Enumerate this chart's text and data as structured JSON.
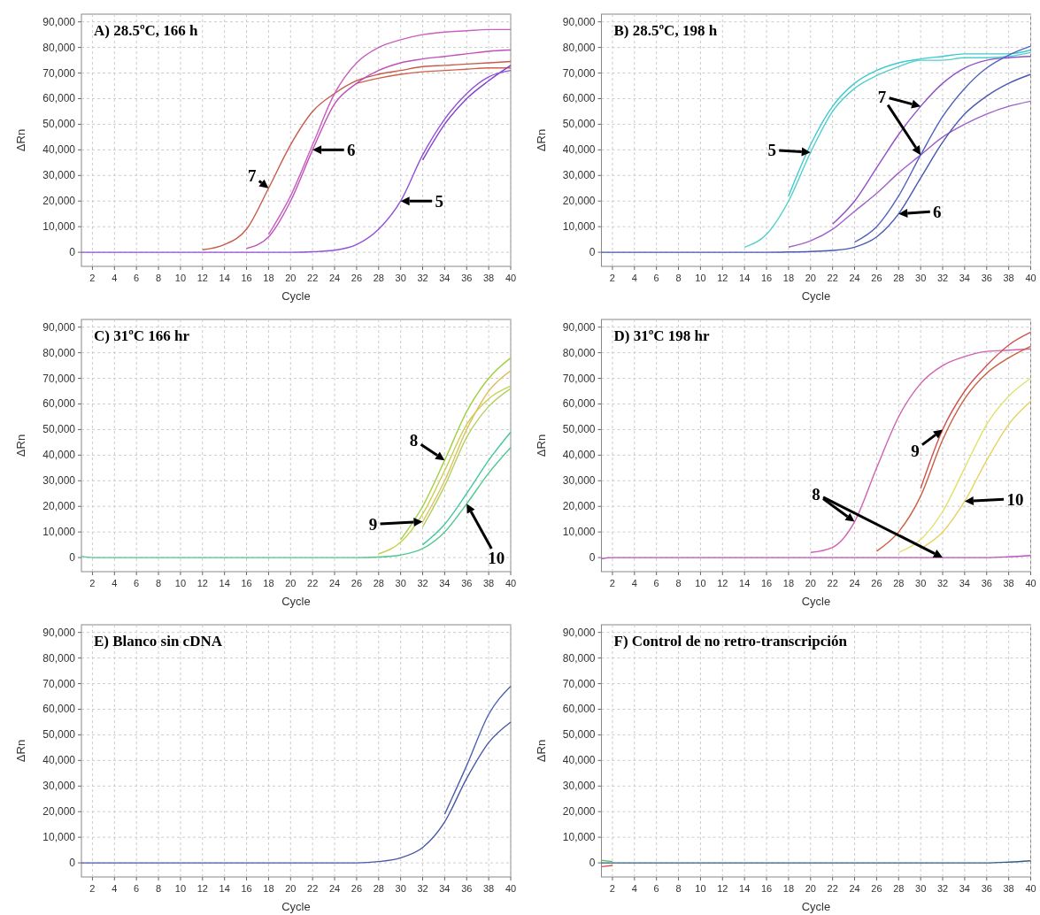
{
  "chart_data": [
    {
      "type": "line",
      "title": "A) 28.5ºC, 166 h",
      "xlabel": "Cycle",
      "ylabel": "ΔRn",
      "grid": true,
      "xlim": [
        1,
        40
      ],
      "ylim": [
        -5500,
        93000
      ],
      "xticks": [
        2,
        4,
        6,
        8,
        10,
        12,
        14,
        16,
        18,
        20,
        22,
        24,
        26,
        28,
        30,
        32,
        34,
        36,
        38,
        40
      ],
      "yticks": [
        {
          "value": 0,
          "label": "0"
        },
        {
          "value": 10000,
          "label": "10,000"
        },
        {
          "value": 20000,
          "label": "20,000"
        },
        {
          "value": 30000,
          "label": "30,000"
        },
        {
          "value": 40000,
          "label": "40,000"
        },
        {
          "value": 50000,
          "label": "50,000"
        },
        {
          "value": 60000,
          "label": "60,000"
        },
        {
          "value": 70000,
          "label": "70,000"
        },
        {
          "value": 80000,
          "label": "80,000"
        },
        {
          "value": 90000,
          "label": "90,000"
        }
      ],
      "x": [
        1,
        2,
        4,
        6,
        8,
        10,
        12,
        14,
        16,
        18,
        20,
        22,
        24,
        26,
        28,
        30,
        32,
        34,
        36,
        38,
        40
      ],
      "series": [
        {
          "color": "#d0604a",
          "values": [
            null,
            null,
            null,
            null,
            null,
            null,
            null,
            null,
            null,
            null,
            null,
            null,
            null,
            66000,
            68000,
            69500,
            70500,
            71000,
            71500,
            72000,
            72000
          ]
        },
        {
          "color": "#c85a48",
          "values": [
            null,
            null,
            null,
            null,
            null,
            null,
            1000,
            3000,
            9000,
            25000,
            42000,
            55000,
            62000,
            67000,
            69500,
            71000,
            72500,
            73000,
            73500,
            74000,
            74500
          ]
        },
        {
          "color": "#c860c0",
          "values": [
            null,
            null,
            null,
            null,
            null,
            null,
            null,
            null,
            null,
            7000,
            22000,
            42000,
            62000,
            74000,
            80000,
            83000,
            85000,
            86000,
            86500,
            87000,
            87000
          ]
        },
        {
          "color": "#c050b8",
          "values": [
            null,
            null,
            null,
            null,
            null,
            null,
            null,
            null,
            1500,
            6000,
            20000,
            40000,
            58000,
            66000,
            71000,
            74000,
            75500,
            76500,
            77500,
            78500,
            79000
          ]
        },
        {
          "color": "#8040d0",
          "values": [
            null,
            null,
            null,
            null,
            null,
            null,
            null,
            null,
            null,
            null,
            null,
            null,
            null,
            null,
            null,
            null,
            36000,
            50000,
            60000,
            67000,
            73000
          ]
        },
        {
          "color": "#9050d8",
          "values": [
            0,
            0,
            0,
            0,
            0,
            0,
            0,
            0,
            0,
            0,
            0,
            200,
            800,
            3000,
            9000,
            20000,
            38000,
            52000,
            62000,
            68500,
            71000
          ]
        }
      ],
      "annotations": [
        {
          "text": "7",
          "x": 18,
          "y": 25000
        },
        {
          "text": "6",
          "x": 22,
          "y": 40000
        },
        {
          "text": "5",
          "x": 30,
          "y": 20000
        }
      ]
    },
    {
      "type": "line",
      "title": "B) 28.5ºC, 198 h",
      "xlabel": "Cycle",
      "ylabel": "ΔRn",
      "grid": true,
      "xlim": [
        1,
        40
      ],
      "ylim": [
        -5500,
        93000
      ],
      "xticks": [
        2,
        4,
        6,
        8,
        10,
        12,
        14,
        16,
        18,
        20,
        22,
        24,
        26,
        28,
        30,
        32,
        34,
        36,
        38,
        40
      ],
      "yticks": [
        {
          "value": 0,
          "label": "0"
        },
        {
          "value": 10000,
          "label": "10,000"
        },
        {
          "value": 20000,
          "label": "20,000"
        },
        {
          "value": 30000,
          "label": "30,000"
        },
        {
          "value": 40000,
          "label": "40,000"
        },
        {
          "value": 50000,
          "label": "50,000"
        },
        {
          "value": 60000,
          "label": "60,000"
        },
        {
          "value": 70000,
          "label": "70,000"
        },
        {
          "value": 80000,
          "label": "80,000"
        },
        {
          "value": 90000,
          "label": "90,000"
        }
      ],
      "x": [
        1,
        2,
        4,
        6,
        8,
        10,
        12,
        14,
        16,
        18,
        20,
        22,
        24,
        26,
        28,
        30,
        32,
        34,
        36,
        38,
        40
      ],
      "series": [
        {
          "color": "#40c8d0",
          "values": [
            null,
            null,
            null,
            null,
            null,
            null,
            null,
            null,
            null,
            22000,
            42000,
            57000,
            66000,
            71000,
            74000,
            75500,
            76500,
            77500,
            77500,
            77500,
            79000
          ]
        },
        {
          "color": "#50d0c8",
          "values": [
            null,
            null,
            null,
            null,
            null,
            null,
            null,
            2000,
            7000,
            20000,
            39000,
            55000,
            64000,
            69000,
            72500,
            75000,
            75000,
            76000,
            76000,
            76500,
            78000
          ]
        },
        {
          "color": "#9050c8",
          "values": [
            null,
            null,
            null,
            null,
            null,
            null,
            null,
            null,
            null,
            null,
            null,
            11000,
            20000,
            33000,
            46000,
            57000,
            66000,
            72000,
            75000,
            76000,
            76500
          ]
        },
        {
          "color": "#a060c8",
          "values": [
            null,
            null,
            null,
            null,
            null,
            null,
            null,
            null,
            null,
            2000,
            4500,
            9000,
            16000,
            23000,
            31000,
            38000,
            45000,
            50000,
            54000,
            57000,
            59000
          ]
        },
        {
          "color": "#5060c0",
          "values": [
            null,
            null,
            null,
            null,
            null,
            null,
            null,
            null,
            null,
            null,
            null,
            null,
            4000,
            10000,
            22000,
            38000,
            53000,
            64000,
            72000,
            77000,
            80500
          ]
        },
        {
          "color": "#4858b0",
          "values": [
            0,
            0,
            0,
            0,
            0,
            0,
            0,
            0,
            0,
            100,
            300,
            700,
            2000,
            6000,
            15000,
            29000,
            43000,
            54000,
            61000,
            66000,
            69500
          ]
        }
      ],
      "annotations": [
        {
          "text": "5",
          "x": 20,
          "y": 39000
        },
        {
          "text": "7",
          "x": 30,
          "y": 57000
        },
        {
          "text": "6",
          "x": 28,
          "y": 15000
        }
      ]
    },
    {
      "type": "line",
      "title": "C) 31ºC 166 hr",
      "xlabel": "Cycle",
      "ylabel": "ΔRn",
      "grid": true,
      "xlim": [
        1,
        40
      ],
      "ylim": [
        -5500,
        93000
      ],
      "xticks": [
        2,
        4,
        6,
        8,
        10,
        12,
        14,
        16,
        18,
        20,
        22,
        24,
        26,
        28,
        30,
        32,
        34,
        36,
        38,
        40
      ],
      "yticks": [
        {
          "value": 0,
          "label": "0"
        },
        {
          "value": 10000,
          "label": "10,000"
        },
        {
          "value": 20000,
          "label": "20,000"
        },
        {
          "value": 30000,
          "label": "30,000"
        },
        {
          "value": 40000,
          "label": "40,000"
        },
        {
          "value": 50000,
          "label": "50,000"
        },
        {
          "value": 60000,
          "label": "60,000"
        },
        {
          "value": 70000,
          "label": "70,000"
        },
        {
          "value": 80000,
          "label": "80,000"
        },
        {
          "value": 90000,
          "label": "90,000"
        }
      ],
      "x": [
        1,
        2,
        4,
        6,
        8,
        10,
        12,
        14,
        16,
        18,
        20,
        22,
        24,
        26,
        28,
        30,
        32,
        34,
        36,
        38,
        40
      ],
      "series": [
        {
          "color": "#a0d040",
          "values": [
            null,
            null,
            null,
            null,
            null,
            null,
            null,
            null,
            null,
            null,
            null,
            null,
            null,
            null,
            null,
            7000,
            20000,
            38000,
            57000,
            70000,
            78000
          ]
        },
        {
          "color": "#c8d050",
          "values": [
            null,
            null,
            null,
            null,
            null,
            null,
            null,
            null,
            null,
            null,
            null,
            null,
            null,
            null,
            1500,
            6000,
            17000,
            34000,
            52000,
            62000,
            67000
          ]
        },
        {
          "color": "#e0c060",
          "values": [
            null,
            null,
            null,
            null,
            null,
            null,
            null,
            null,
            null,
            null,
            null,
            null,
            null,
            null,
            null,
            null,
            14000,
            30000,
            50000,
            65000,
            73000
          ]
        },
        {
          "color": "#b0d060",
          "values": [
            null,
            null,
            null,
            null,
            null,
            null,
            null,
            null,
            null,
            null,
            null,
            null,
            null,
            null,
            null,
            null,
            12000,
            28000,
            47000,
            59000,
            66000
          ]
        },
        {
          "color": "#40c8a0",
          "values": [
            null,
            null,
            null,
            null,
            null,
            null,
            null,
            null,
            null,
            null,
            null,
            null,
            null,
            null,
            null,
            null,
            5000,
            13000,
            25000,
            38000,
            49000
          ]
        },
        {
          "color": "#50c890",
          "values": [
            500,
            0,
            0,
            0,
            0,
            0,
            0,
            0,
            0,
            0,
            0,
            0,
            0,
            0,
            200,
            1000,
            3500,
            10000,
            21000,
            33000,
            43000
          ]
        }
      ],
      "annotations": [
        {
          "text": "8",
          "x": 34,
          "y": 38000
        },
        {
          "text": "9",
          "x": 32,
          "y": 14000
        },
        {
          "text": "10",
          "x": 36,
          "y": 21000
        }
      ]
    },
    {
      "type": "line",
      "title": "D) 31ºC 198 hr",
      "xlabel": "Cycle",
      "ylabel": "ΔRn",
      "grid": true,
      "xlim": [
        1,
        40
      ],
      "ylim": [
        -5500,
        93000
      ],
      "xticks": [
        2,
        4,
        6,
        8,
        10,
        12,
        14,
        16,
        18,
        20,
        22,
        24,
        26,
        28,
        30,
        32,
        34,
        36,
        38,
        40
      ],
      "yticks": [
        {
          "value": 0,
          "label": "0"
        },
        {
          "value": 10000,
          "label": "10,000"
        },
        {
          "value": 20000,
          "label": "20,000"
        },
        {
          "value": 30000,
          "label": "30,000"
        },
        {
          "value": 40000,
          "label": "40,000"
        },
        {
          "value": 50000,
          "label": "50,000"
        },
        {
          "value": 60000,
          "label": "60,000"
        },
        {
          "value": 70000,
          "label": "70,000"
        },
        {
          "value": 80000,
          "label": "80,000"
        },
        {
          "value": 90000,
          "label": "90,000"
        }
      ],
      "x": [
        1,
        2,
        4,
        6,
        8,
        10,
        12,
        14,
        16,
        18,
        20,
        22,
        24,
        26,
        28,
        30,
        32,
        34,
        36,
        38,
        40
      ],
      "series": [
        {
          "color": "#d060b0",
          "values": [
            null,
            null,
            null,
            null,
            null,
            null,
            null,
            null,
            null,
            null,
            2000,
            4000,
            14000,
            35000,
            55000,
            68000,
            75000,
            78500,
            80500,
            81000,
            81500
          ]
        },
        {
          "color": "#d05050",
          "values": [
            null,
            null,
            null,
            null,
            null,
            null,
            null,
            null,
            null,
            null,
            null,
            null,
            null,
            null,
            null,
            27000,
            50000,
            65000,
            75000,
            83000,
            88000
          ]
        },
        {
          "color": "#c86040",
          "values": [
            null,
            null,
            null,
            null,
            null,
            null,
            null,
            null,
            null,
            null,
            null,
            null,
            null,
            2500,
            10000,
            24000,
            46000,
            62000,
            72000,
            78000,
            82500
          ]
        },
        {
          "color": "#e0e070",
          "values": [
            null,
            null,
            null,
            null,
            null,
            null,
            null,
            null,
            null,
            null,
            null,
            null,
            null,
            null,
            2000,
            7000,
            18000,
            35000,
            52000,
            63000,
            70000
          ]
        },
        {
          "color": "#e8d060",
          "values": [
            null,
            null,
            null,
            null,
            null,
            null,
            null,
            null,
            null,
            null,
            null,
            null,
            null,
            null,
            null,
            3500,
            10000,
            22000,
            38000,
            52000,
            61000
          ]
        },
        {
          "color": "#c050c0",
          "values": [
            -500,
            0,
            0,
            0,
            0,
            0,
            0,
            0,
            0,
            0,
            0,
            0,
            0,
            0,
            0,
            0,
            0,
            0,
            0,
            300,
            800
          ]
        }
      ],
      "annotations": [
        {
          "text": "9",
          "x": 32,
          "y": 50000
        },
        {
          "text": "8",
          "x": 24,
          "y": 14000
        },
        {
          "text": "10",
          "x": 34,
          "y": 22000
        }
      ]
    },
    {
      "type": "line",
      "title": "E) Blanco sin cDNA",
      "xlabel": "Cycle",
      "ylabel": "ΔRn",
      "grid": true,
      "xlim": [
        1,
        40
      ],
      "ylim": [
        -5500,
        93000
      ],
      "xticks": [
        2,
        4,
        6,
        8,
        10,
        12,
        14,
        16,
        18,
        20,
        22,
        24,
        26,
        28,
        30,
        32,
        34,
        36,
        38,
        40
      ],
      "yticks": [
        {
          "value": 0,
          "label": "0"
        },
        {
          "value": 10000,
          "label": "10,000"
        },
        {
          "value": 20000,
          "label": "20,000"
        },
        {
          "value": 30000,
          "label": "30,000"
        },
        {
          "value": 40000,
          "label": "40,000"
        },
        {
          "value": 50000,
          "label": "50,000"
        },
        {
          "value": 60000,
          "label": "60,000"
        },
        {
          "value": 70000,
          "label": "70,000"
        },
        {
          "value": 80000,
          "label": "80,000"
        },
        {
          "value": 90000,
          "label": "90,000"
        }
      ],
      "x": [
        1,
        2,
        4,
        6,
        8,
        10,
        12,
        14,
        16,
        18,
        20,
        22,
        24,
        26,
        28,
        30,
        32,
        34,
        36,
        38,
        40
      ],
      "series": [
        {
          "color": "#5060b0",
          "values": [
            null,
            null,
            null,
            null,
            null,
            null,
            null,
            null,
            null,
            null,
            null,
            null,
            null,
            null,
            null,
            null,
            null,
            19000,
            38000,
            58000,
            69000
          ]
        },
        {
          "color": "#4858a8",
          "values": [
            0,
            0,
            0,
            0,
            0,
            0,
            0,
            0,
            0,
            0,
            0,
            0,
            0,
            0,
            500,
            2000,
            6000,
            16000,
            33000,
            47000,
            55000
          ]
        }
      ]
    },
    {
      "type": "line",
      "title": "F) Control de no retro-transcripción",
      "xlabel": "Cycle",
      "ylabel": "ΔRn",
      "grid": true,
      "xlim": [
        1,
        40
      ],
      "ylim": [
        -5500,
        93000
      ],
      "xticks": [
        2,
        4,
        6,
        8,
        10,
        12,
        14,
        16,
        18,
        20,
        22,
        24,
        26,
        28,
        30,
        32,
        34,
        36,
        38,
        40
      ],
      "yticks": [
        {
          "value": 0,
          "label": "0"
        },
        {
          "value": 10000,
          "label": "10,000"
        },
        {
          "value": 20000,
          "label": "20,000"
        },
        {
          "value": 30000,
          "label": "30,000"
        },
        {
          "value": 40000,
          "label": "40,000"
        },
        {
          "value": 50000,
          "label": "50,000"
        },
        {
          "value": 60000,
          "label": "60,000"
        },
        {
          "value": 70000,
          "label": "70,000"
        },
        {
          "value": 80000,
          "label": "80,000"
        },
        {
          "value": 90000,
          "label": "90,000"
        }
      ],
      "x": [
        1,
        2,
        4,
        6,
        8,
        10,
        12,
        14,
        16,
        18,
        20,
        22,
        24,
        26,
        28,
        30,
        32,
        34,
        36,
        38,
        40
      ],
      "series": [
        {
          "color": "#60c060",
          "values": [
            1000,
            500,
            null,
            null,
            null,
            null,
            null,
            null,
            null,
            null,
            null,
            null,
            null,
            null,
            null,
            null,
            null,
            null,
            null,
            null,
            null
          ]
        },
        {
          "color": "#d05050",
          "values": [
            -1500,
            -1000,
            null,
            null,
            null,
            null,
            null,
            null,
            null,
            null,
            null,
            null,
            null,
            null,
            null,
            null,
            null,
            null,
            null,
            null,
            null
          ]
        },
        {
          "color": "#306080",
          "values": [
            0,
            0,
            0,
            0,
            0,
            0,
            0,
            0,
            0,
            0,
            0,
            0,
            0,
            0,
            0,
            0,
            0,
            0,
            0,
            300,
            800
          ]
        }
      ]
    }
  ]
}
